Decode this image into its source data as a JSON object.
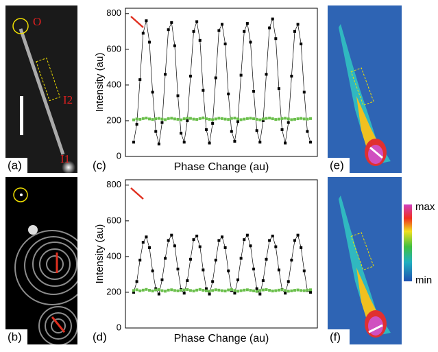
{
  "chart_data": [
    {
      "type": "line",
      "panel": "(c)",
      "x_label": "Phase Change (au)",
      "y_label": "Intensity (au)",
      "ylim": [
        0,
        830
      ],
      "yticks": [
        0,
        200,
        400,
        600,
        800
      ],
      "series": [
        {
          "color": "#000000",
          "marker": "square",
          "values": [
            80,
            180,
            430,
            690,
            760,
            640,
            360,
            140,
            70,
            190,
            460,
            710,
            750,
            620,
            340,
            130,
            80,
            200,
            450,
            700,
            755,
            650,
            370,
            150,
            75,
            185,
            440,
            705,
            740,
            630,
            350,
            140,
            85,
            195,
            455,
            700,
            745,
            640,
            365,
            145,
            80,
            200,
            460,
            720,
            770,
            660,
            380,
            150,
            75,
            190,
            450,
            700,
            740,
            630,
            360,
            140,
            80
          ]
        },
        {
          "color": "#6abf4b",
          "marker": "square",
          "values": [
            205,
            210,
            208,
            212,
            215,
            210,
            207,
            211,
            213,
            209,
            206,
            212,
            214,
            210,
            208,
            205,
            211,
            215,
            213,
            209,
            207,
            212,
            216,
            211,
            208,
            206,
            210,
            214,
            212,
            209,
            207,
            213,
            215,
            210,
            206,
            209,
            212,
            214,
            211,
            208,
            205,
            210,
            213,
            215,
            211,
            207,
            209,
            212,
            214,
            210,
            206,
            208,
            211,
            213,
            210,
            209,
            212
          ]
        }
      ]
    },
    {
      "type": "line",
      "panel": "(d)",
      "x_label": "Phase Change (au)",
      "y_label": "Intensity (au)",
      "ylim": [
        0,
        830
      ],
      "yticks": [
        0,
        200,
        400,
        600,
        800
      ],
      "series": [
        {
          "color": "#000000",
          "marker": "square",
          "values": [
            200,
            260,
            380,
            480,
            510,
            450,
            320,
            220,
            190,
            270,
            390,
            490,
            520,
            460,
            330,
            215,
            195,
            265,
            385,
            495,
            515,
            455,
            325,
            220,
            190,
            260,
            380,
            490,
            510,
            450,
            320,
            210,
            195,
            270,
            390,
            495,
            520,
            460,
            330,
            220,
            190,
            265,
            385,
            490,
            515,
            455,
            325,
            215,
            195,
            260,
            380,
            490,
            520,
            450,
            320,
            210,
            200
          ]
        },
        {
          "color": "#6abf4b",
          "marker": "square",
          "values": [
            210,
            214,
            208,
            212,
            216,
            211,
            207,
            213,
            215,
            209,
            206,
            212,
            214,
            210,
            208,
            211,
            213,
            215,
            210,
            207,
            212,
            216,
            211,
            208,
            206,
            210,
            214,
            212,
            209,
            207,
            213,
            215,
            210,
            206,
            209,
            212,
            214,
            211,
            208,
            205,
            210,
            213,
            215,
            211,
            207,
            209,
            212,
            214,
            210,
            206,
            208,
            211,
            213,
            210,
            209,
            212,
            214
          ]
        }
      ]
    }
  ],
  "panels": {
    "a": "(a)",
    "b": "(b)",
    "e": "(e)",
    "f": "(f)"
  },
  "annotations": {
    "origin": "O",
    "i1": "I1",
    "i2": "I2"
  },
  "colorbar": {
    "max": "max",
    "min": "min"
  }
}
